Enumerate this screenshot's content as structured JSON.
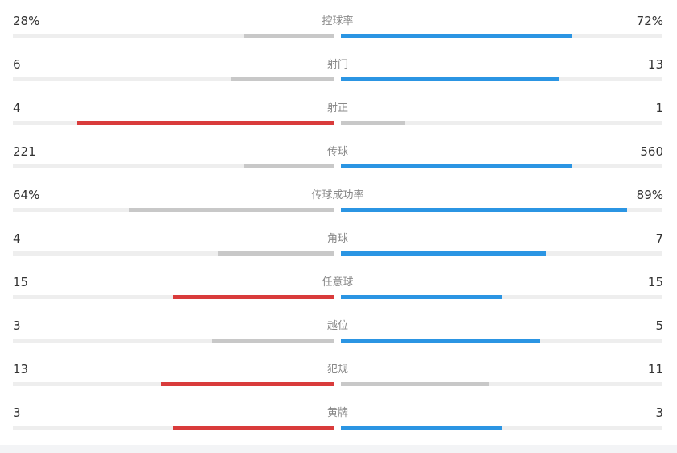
{
  "colors": {
    "home_leader": "#d93b3b",
    "away_leader": "#2b95e3",
    "neutral": "#c8c8c8",
    "track": "#eeeeee"
  },
  "stats": [
    {
      "label": "控球率",
      "home": "28%",
      "away": "72%",
      "home_share": 0.28,
      "away_share": 0.72
    },
    {
      "label": "射门",
      "home": "6",
      "away": "13",
      "home_share": 0.32,
      "away_share": 0.68
    },
    {
      "label": "射正",
      "home": "4",
      "away": "1",
      "home_share": 0.8,
      "away_share": 0.2
    },
    {
      "label": "传球",
      "home": "221",
      "away": "560",
      "home_share": 0.28,
      "away_share": 0.72
    },
    {
      "label": "传球成功率",
      "home": "64%",
      "away": "89%",
      "home_share": 0.64,
      "away_share": 0.89
    },
    {
      "label": "角球",
      "home": "4",
      "away": "7",
      "home_share": 0.36,
      "away_share": 0.64
    },
    {
      "label": "任意球",
      "home": "15",
      "away": "15",
      "home_share": 0.5,
      "away_share": 0.5
    },
    {
      "label": "越位",
      "home": "3",
      "away": "5",
      "home_share": 0.38,
      "away_share": 0.62
    },
    {
      "label": "犯规",
      "home": "13",
      "away": "11",
      "home_share": 0.54,
      "away_share": 0.46
    },
    {
      "label": "黄牌",
      "home": "3",
      "away": "3",
      "home_share": 0.5,
      "away_share": 0.5
    }
  ]
}
